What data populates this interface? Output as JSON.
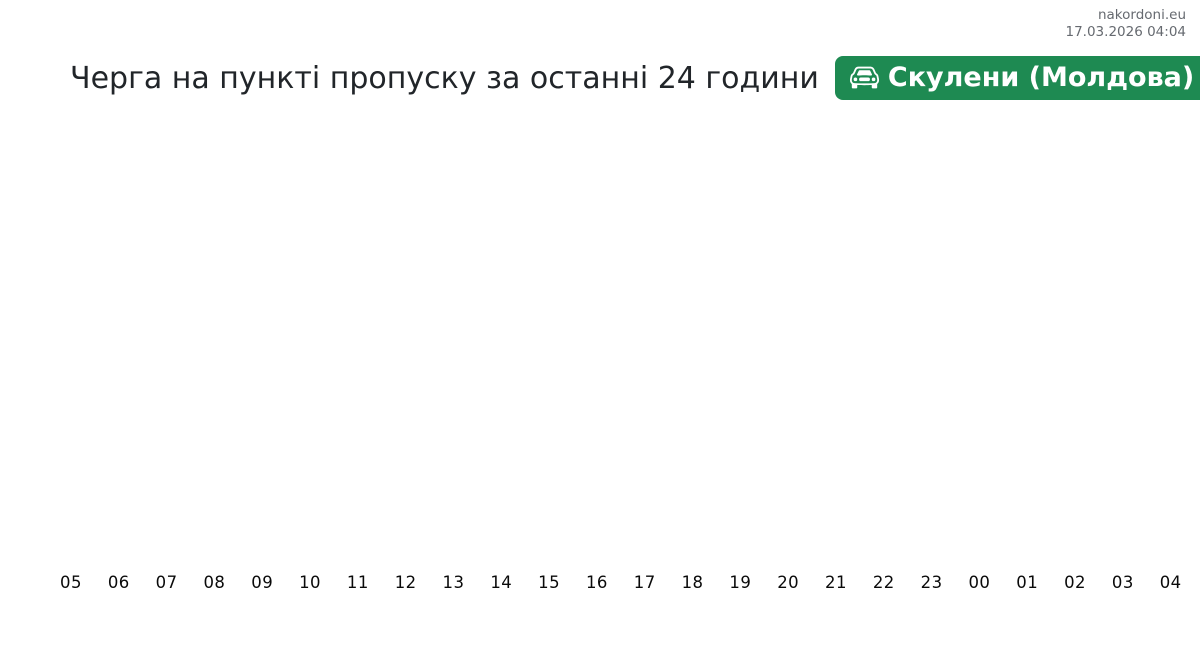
{
  "header": {
    "site": "nakordoni.eu",
    "timestamp": "17.03.2026 04:04",
    "title": "Черга на пункті пропуску за останні 24 години",
    "badge": {
      "label": "Скулени (Молдова)",
      "icon": "car-front-icon",
      "background_color": "#1e8a52",
      "text_color": "#ffffff"
    }
  },
  "chart_data": {
    "type": "bar",
    "title": "Черга на пункті пропуску за останні 24 години",
    "categories": [
      "05",
      "06",
      "07",
      "08",
      "09",
      "10",
      "11",
      "12",
      "13",
      "14",
      "15",
      "16",
      "17",
      "18",
      "19",
      "20",
      "21",
      "22",
      "23",
      "00",
      "01",
      "02",
      "03",
      "04"
    ],
    "values": [
      0,
      0,
      0,
      0,
      0,
      0,
      0,
      0,
      0,
      0,
      0,
      0,
      0,
      0,
      0,
      0,
      0,
      0,
      0,
      0,
      0,
      0,
      0,
      0
    ],
    "xlabel": "",
    "ylabel": "",
    "ylim": [
      0,
      1
    ],
    "grid": false,
    "legend": false,
    "bar_color": "#1e8a52",
    "tick_label_color": "#0a0a0a"
  },
  "colors": {
    "accent_green": "#1e8a52",
    "title_text": "#212529",
    "meta_text": "#666a70",
    "background": "#ffffff"
  }
}
